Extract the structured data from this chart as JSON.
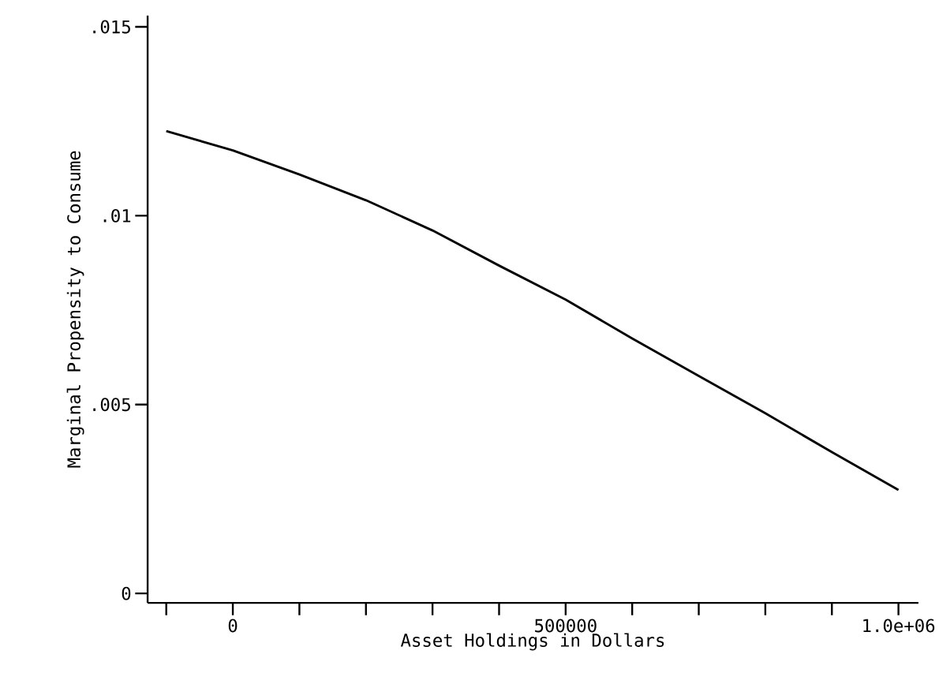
{
  "chart_data": {
    "type": "line",
    "xlabel": "Asset Holdings in Dollars",
    "ylabel": "Marginal Propensity to Consume",
    "x": [
      -100000,
      0,
      100000,
      200000,
      300000,
      400000,
      500000,
      600000,
      700000,
      800000,
      900000,
      1000000
    ],
    "series": [
      {
        "color": "#000000",
        "values": [
          0.01224,
          0.01173,
          0.01109,
          0.01041,
          0.00961,
          0.00868,
          0.00778,
          0.00675,
          0.00576,
          0.00477,
          0.00374,
          0.00274
        ]
      }
    ],
    "xlim": [
      -128000,
      1030000
    ],
    "ylim": [
      -0.00025,
      0.0153
    ],
    "xticks": [
      {
        "value": -100000,
        "label": null
      },
      0,
      {
        "value": 100000,
        "label": null
      },
      {
        "value": 200000,
        "label": null
      },
      {
        "value": 300000,
        "label": null
      },
      {
        "value": 400000,
        "label": null
      },
      500000,
      {
        "value": 600000,
        "label": null
      },
      {
        "value": 700000,
        "label": null
      },
      {
        "value": 800000,
        "label": null
      },
      {
        "value": 900000,
        "label": null
      },
      {
        "value": 1000000,
        "label": "1.0e+06"
      }
    ],
    "yticks": [
      0,
      {
        "value": 0.005,
        "label": ".005"
      },
      {
        "value": 0.01,
        "label": ".01"
      },
      {
        "value": 0.015,
        "label": ".015"
      }
    ],
    "grid": false,
    "marker": "none",
    "line_style": "solid"
  }
}
